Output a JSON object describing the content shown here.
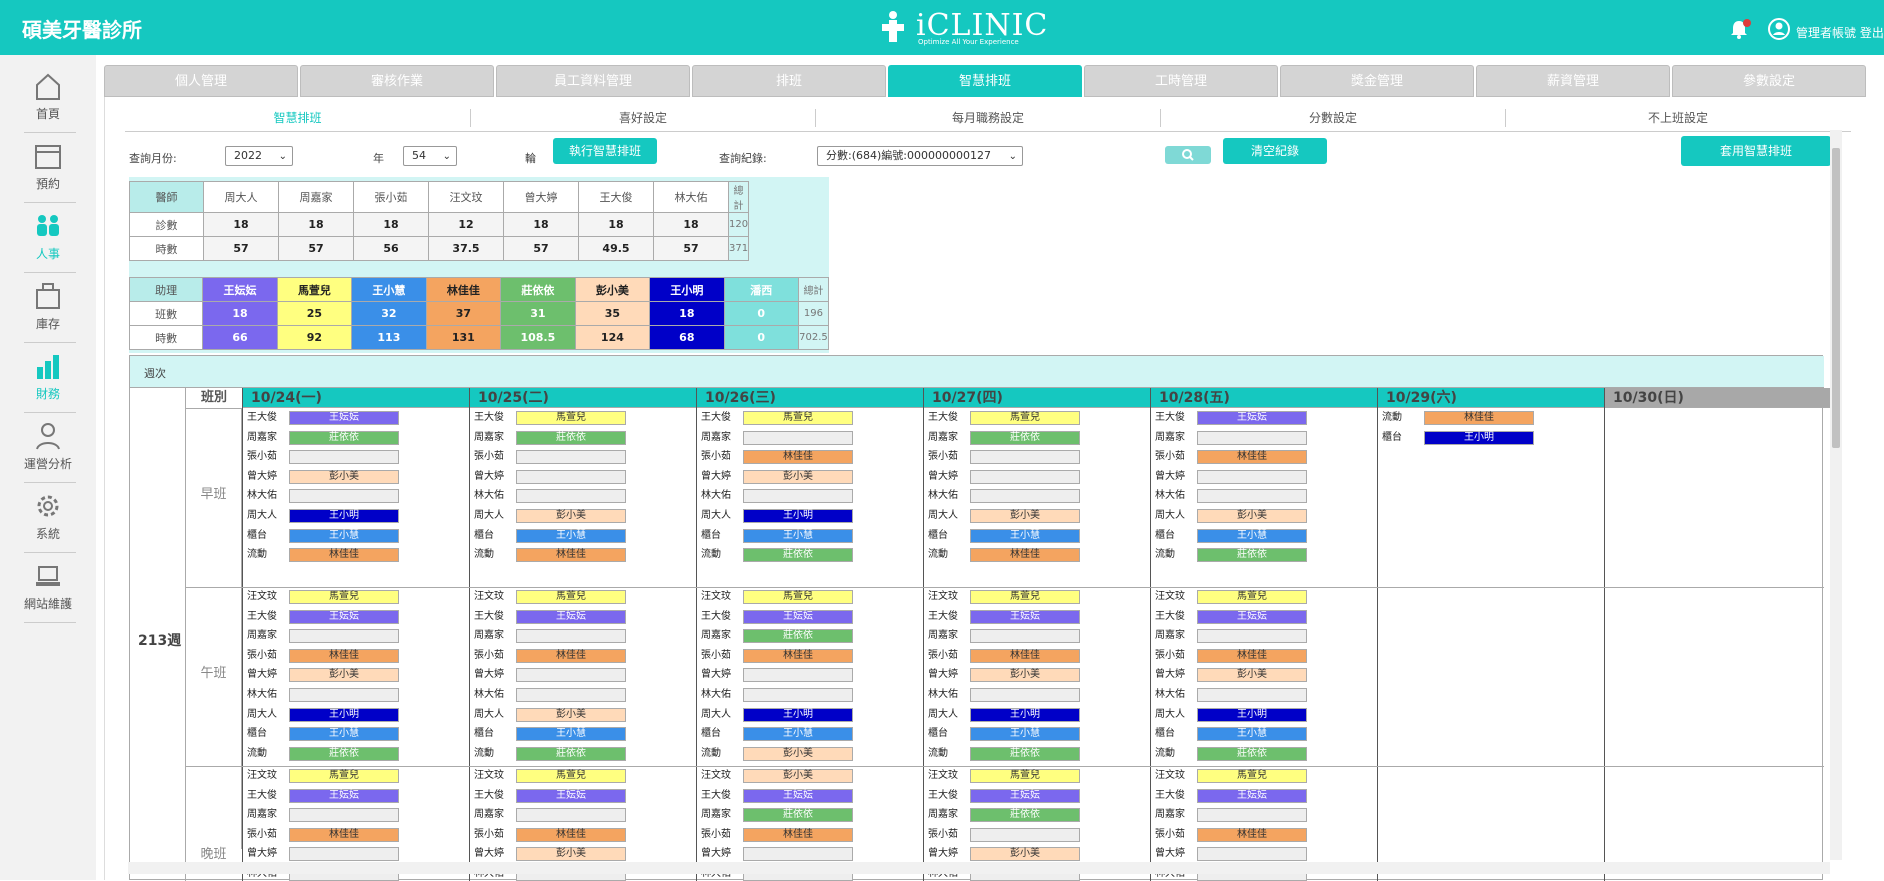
{
  "header": {
    "clinic_name": "碩美牙醫診所",
    "logo_text": "iCLINIC",
    "logo_tagline": "Optimize All Your Experience",
    "user_label": "管理者帳號 登出"
  },
  "sidebar": {
    "items": [
      {
        "label": "首頁",
        "icon": "home-icon"
      },
      {
        "label": "預約",
        "icon": "calendar-icon"
      },
      {
        "label": "人事",
        "icon": "people-icon"
      },
      {
        "label": "庫存",
        "icon": "box-icon"
      },
      {
        "label": "財務",
        "icon": "bar-chart-icon"
      },
      {
        "label": "運營分析",
        "icon": "user-icon"
      },
      {
        "label": "系統",
        "icon": "gear-icon"
      },
      {
        "label": "網站維護",
        "icon": "laptop-icon"
      }
    ],
    "active": "人事"
  },
  "tabs": [
    "個人管理",
    "審核作業",
    "員工資料管理",
    "排班",
    "智慧排班",
    "工時管理",
    "獎金管理",
    "薪資管理",
    "參數設定"
  ],
  "active_tab": "智慧排班",
  "subtabs": [
    "智慧排班",
    "喜好設定",
    "每月職務設定",
    "分數設定",
    "不上班設定"
  ],
  "filters": {
    "month_label": "查詢月份:",
    "year_value": "2022",
    "year_suffix": "年",
    "week_value": "54",
    "week_suffix": "輪",
    "run_button": "執行智慧排班",
    "record_label": "查詢紀錄:",
    "record_value": "分數:(684)編號:000000000127",
    "clear_button": "清空紀錄",
    "apply_button": "套用智慧排班"
  },
  "doctors": {
    "header": "醫師",
    "row1_label": "診數",
    "row2_label": "時數",
    "total_label": "總計",
    "names": [
      "周大人",
      "周嘉家",
      "張小茹",
      "汪文玟",
      "曾大婷",
      "王大俊",
      "林大佑"
    ],
    "visits": [
      "18",
      "18",
      "18",
      "12",
      "18",
      "18",
      "18"
    ],
    "hours": [
      "57",
      "57",
      "56",
      "37.5",
      "57",
      "49.5",
      "57"
    ],
    "total_visits": "120",
    "total_hours": "371"
  },
  "assistants": {
    "header": "助理",
    "row1_label": "班數",
    "row2_label": "時數",
    "total_label": "總計",
    "names": [
      "王妘妘",
      "馬萱兒",
      "王小慧",
      "林佳佳",
      "莊依依",
      "彭小美",
      "王小明",
      "潘西"
    ],
    "colors": [
      "#7b68ee",
      "#ffff80",
      "#3a8fe8",
      "#f4a460",
      "#6dbf6d",
      "#ffdab9",
      "#0000c8",
      "#7fe0dc"
    ],
    "shifts": [
      "18",
      "25",
      "32",
      "37",
      "31",
      "35",
      "18",
      "0"
    ],
    "hours": [
      "66",
      "92",
      "113",
      "131",
      "108.5",
      "124",
      "68",
      "0"
    ],
    "total_shifts": "196",
    "total_hours": "702.5"
  },
  "schedule": {
    "week_header": "週次",
    "week_label": "213週",
    "shift_header": "班別",
    "shifts": [
      "早班",
      "午班",
      "晚班"
    ],
    "days": [
      {
        "date": "10/24(一)",
        "sun": false,
        "blocks": [
          [
            [
              "王大俊",
              "王妘妘"
            ],
            [
              "周嘉家",
              "莊依依"
            ],
            [
              "張小茹",
              ""
            ],
            [
              "曾大婷",
              "彭小美"
            ],
            [
              "林大佑",
              ""
            ],
            [
              "周大人",
              "王小明"
            ],
            [
              "櫃台",
              "王小慧"
            ],
            [
              "流動",
              "林佳佳"
            ]
          ],
          [
            [
              "汪文玟",
              "馬萱兒"
            ],
            [
              "王大俊",
              "王妘妘"
            ],
            [
              "周嘉家",
              ""
            ],
            [
              "張小茹",
              "林佳佳"
            ],
            [
              "曾大婷",
              "彭小美"
            ],
            [
              "林大佑",
              ""
            ],
            [
              "周大人",
              "王小明"
            ],
            [
              "櫃台",
              "王小慧"
            ],
            [
              "流動",
              "莊依依"
            ]
          ],
          [
            [
              "汪文玟",
              "馬萱兒"
            ],
            [
              "王大俊",
              "王妘妘"
            ],
            [
              "周嘉家",
              ""
            ],
            [
              "張小茹",
              "林佳佳"
            ],
            [
              "曾大婷",
              ""
            ],
            [
              "林大佑",
              ""
            ]
          ]
        ]
      },
      {
        "date": "10/25(二)",
        "sun": false,
        "blocks": [
          [
            [
              "王大俊",
              "馬萱兒"
            ],
            [
              "周嘉家",
              "莊依依"
            ],
            [
              "張小茹",
              ""
            ],
            [
              "曾大婷",
              ""
            ],
            [
              "林大佑",
              ""
            ],
            [
              "周大人",
              "彭小美"
            ],
            [
              "櫃台",
              "王小慧"
            ],
            [
              "流動",
              "林佳佳"
            ]
          ],
          [
            [
              "汪文玟",
              "馬萱兒"
            ],
            [
              "王大俊",
              "王妘妘"
            ],
            [
              "周嘉家",
              ""
            ],
            [
              "張小茹",
              "林佳佳"
            ],
            [
              "曾大婷",
              ""
            ],
            [
              "林大佑",
              ""
            ],
            [
              "周大人",
              "彭小美"
            ],
            [
              "櫃台",
              "王小慧"
            ],
            [
              "流動",
              "莊依依"
            ]
          ],
          [
            [
              "汪文玟",
              "馬萱兒"
            ],
            [
              "王大俊",
              "王妘妘"
            ],
            [
              "周嘉家",
              ""
            ],
            [
              "張小茹",
              "林佳佳"
            ],
            [
              "曾大婷",
              "彭小美"
            ],
            [
              "林大佑",
              ""
            ]
          ]
        ]
      },
      {
        "date": "10/26(三)",
        "sun": false,
        "blocks": [
          [
            [
              "王大俊",
              "馬萱兒"
            ],
            [
              "周嘉家",
              ""
            ],
            [
              "張小茹",
              "林佳佳"
            ],
            [
              "曾大婷",
              "彭小美"
            ],
            [
              "林大佑",
              ""
            ],
            [
              "周大人",
              "王小明"
            ],
            [
              "櫃台",
              "王小慧"
            ],
            [
              "流動",
              "莊依依"
            ]
          ],
          [
            [
              "汪文玟",
              "馬萱兒"
            ],
            [
              "王大俊",
              "王妘妘"
            ],
            [
              "周嘉家",
              "莊依依"
            ],
            [
              "張小茹",
              "林佳佳"
            ],
            [
              "曾大婷",
              ""
            ],
            [
              "林大佑",
              ""
            ],
            [
              "周大人",
              "王小明"
            ],
            [
              "櫃台",
              "王小慧"
            ],
            [
              "流動",
              "彭小美"
            ]
          ],
          [
            [
              "汪文玟",
              "彭小美"
            ],
            [
              "王大俊",
              "王妘妘"
            ],
            [
              "周嘉家",
              "莊依依"
            ],
            [
              "張小茹",
              "林佳佳"
            ],
            [
              "曾大婷",
              ""
            ],
            [
              "林大佑",
              ""
            ]
          ]
        ]
      },
      {
        "date": "10/27(四)",
        "sun": false,
        "blocks": [
          [
            [
              "王大俊",
              "馬萱兒"
            ],
            [
              "周嘉家",
              "莊依依"
            ],
            [
              "張小茹",
              ""
            ],
            [
              "曾大婷",
              ""
            ],
            [
              "林大佑",
              ""
            ],
            [
              "周大人",
              "彭小美"
            ],
            [
              "櫃台",
              "王小慧"
            ],
            [
              "流動",
              "林佳佳"
            ]
          ],
          [
            [
              "汪文玟",
              "馬萱兒"
            ],
            [
              "王大俊",
              "王妘妘"
            ],
            [
              "周嘉家",
              ""
            ],
            [
              "張小茹",
              "林佳佳"
            ],
            [
              "曾大婷",
              "彭小美"
            ],
            [
              "林大佑",
              ""
            ],
            [
              "周大人",
              "王小明"
            ],
            [
              "櫃台",
              "王小慧"
            ],
            [
              "流動",
              "莊依依"
            ]
          ],
          [
            [
              "汪文玟",
              "馬萱兒"
            ],
            [
              "王大俊",
              "王妘妘"
            ],
            [
              "周嘉家",
              "莊依依"
            ],
            [
              "張小茹",
              ""
            ],
            [
              "曾大婷",
              "彭小美"
            ],
            [
              "林大佑",
              ""
            ]
          ]
        ]
      },
      {
        "date": "10/28(五)",
        "sun": false,
        "blocks": [
          [
            [
              "王大俊",
              "王妘妘"
            ],
            [
              "周嘉家",
              ""
            ],
            [
              "張小茹",
              "林佳佳"
            ],
            [
              "曾大婷",
              ""
            ],
            [
              "林大佑",
              ""
            ],
            [
              "周大人",
              "彭小美"
            ],
            [
              "櫃台",
              "王小慧"
            ],
            [
              "流動",
              "莊依依"
            ]
          ],
          [
            [
              "汪文玟",
              "馬萱兒"
            ],
            [
              "王大俊",
              "王妘妘"
            ],
            [
              "周嘉家",
              ""
            ],
            [
              "張小茹",
              "林佳佳"
            ],
            [
              "曾大婷",
              "彭小美"
            ],
            [
              "林大佑",
              ""
            ],
            [
              "周大人",
              "王小明"
            ],
            [
              "櫃台",
              "王小慧"
            ],
            [
              "流動",
              "莊依依"
            ]
          ],
          [
            [
              "汪文玟",
              "馬萱兒"
            ],
            [
              "王大俊",
              "王妘妘"
            ],
            [
              "周嘉家",
              ""
            ],
            [
              "張小茹",
              "林佳佳"
            ],
            [
              "曾大婷",
              ""
            ],
            [
              "林大佑",
              ""
            ]
          ]
        ]
      },
      {
        "date": "10/29(六)",
        "sun": false,
        "blocks": [
          [
            [
              "流動",
              "林佳佳"
            ],
            [
              "櫃台",
              "王小明"
            ]
          ],
          [],
          []
        ]
      },
      {
        "date": "10/30(日)",
        "sun": true,
        "blocks": [
          [],
          [],
          []
        ]
      }
    ]
  }
}
